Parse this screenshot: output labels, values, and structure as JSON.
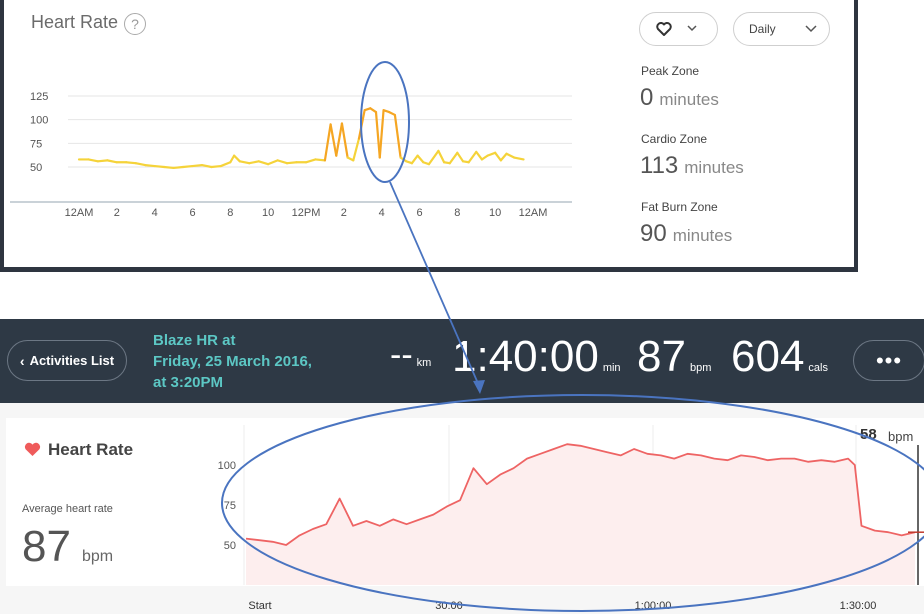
{
  "daily_card": {
    "title": "Heart Rate",
    "help": "?",
    "heart_dropdown": {
      "icon": "heart-outline-icon",
      "caret": "chevron-down-icon"
    },
    "range_dropdown": {
      "label": "Daily",
      "caret": "chevron-down-icon"
    },
    "zones": [
      {
        "label": "Peak Zone",
        "value": "0",
        "unit": "minutes"
      },
      {
        "label": "Cardio Zone",
        "value": "113",
        "unit": "minutes"
      },
      {
        "label": "Fat Burn Zone",
        "value": "90",
        "unit": "minutes"
      }
    ]
  },
  "activity_header": {
    "back_label": "Activities List",
    "title_lines": [
      "Blaze HR at",
      "Friday, 25 March 2016,",
      "at 3:20PM"
    ],
    "stats": [
      {
        "value": "--",
        "unit": "km"
      },
      {
        "value": "1:40:00",
        "unit": "min"
      },
      {
        "value": "87",
        "unit": "bpm"
      },
      {
        "value": "604",
        "unit": "cals"
      }
    ],
    "more_label": "•••"
  },
  "activity_card": {
    "title": "Heart Rate",
    "avg_label": "Average heart rate",
    "avg_value": "87",
    "avg_unit": "bpm",
    "current_value": "58",
    "current_unit": "bpm"
  },
  "colors": {
    "daily_line_low": "#f5d33a",
    "daily_line_high": "#f5a623",
    "activity_line": "#ee6464",
    "activity_fill": "#fdeeee",
    "annotation": "#4a74c0",
    "header_bg": "#2e3945",
    "title_teal": "#5cc7c4"
  },
  "chart_data": [
    {
      "type": "line",
      "ylabel": "",
      "xlabel": "",
      "yticks": [
        125,
        100,
        75,
        50
      ],
      "ylim": [
        37,
        130
      ],
      "xticks": [
        "12AM",
        "2",
        "4",
        "6",
        "8",
        "10",
        "12PM",
        "2",
        "4",
        "6",
        "8",
        "10",
        "12AM"
      ],
      "x_hours": [
        0,
        0.5,
        1,
        1.5,
        2,
        2.5,
        3,
        3.5,
        4,
        4.5,
        5,
        5.5,
        6,
        6.5,
        7,
        7.5,
        8,
        8.2,
        8.5,
        9,
        9.5,
        10,
        10.5,
        11,
        11.5,
        12,
        12.5,
        13,
        13.3,
        13.6,
        13.9,
        14.2,
        14.5,
        14.8,
        15.1,
        15.4,
        15.7,
        15.9,
        16.1,
        16.4,
        16.7,
        17,
        17.3,
        17.6,
        17.9,
        18.2,
        18.5,
        19,
        19.3,
        19.6,
        20,
        20.3,
        20.6,
        21,
        21.3,
        21.6,
        22,
        22.3,
        22.6,
        23,
        23.5
      ],
      "values": [
        58,
        58,
        56,
        57,
        55,
        55,
        54,
        52,
        51,
        50,
        49,
        50,
        51,
        52,
        50,
        51,
        55,
        62,
        56,
        54,
        56,
        53,
        57,
        54,
        55,
        55,
        58,
        57,
        95,
        62,
        96,
        60,
        57,
        80,
        110,
        112,
        108,
        60,
        110,
        108,
        105,
        60,
        56,
        54,
        62,
        55,
        53,
        67,
        55,
        54,
        65,
        56,
        55,
        66,
        58,
        62,
        65,
        57,
        64,
        60,
        58
      ]
    },
    {
      "type": "area",
      "xticks": [
        "Start",
        "30:00",
        "1:00:00",
        "1:30:00"
      ],
      "yticks": [
        100,
        75,
        50
      ],
      "ylim": [
        28,
        125
      ],
      "x_minutes": [
        0,
        2,
        4,
        6,
        8,
        10,
        12,
        14,
        16,
        18,
        20,
        22,
        24,
        26,
        28,
        30,
        32,
        34,
        36,
        38,
        40,
        42,
        44,
        46,
        48,
        50,
        52,
        54,
        56,
        58,
        60,
        62,
        64,
        66,
        68,
        70,
        72,
        74,
        76,
        78,
        80,
        82,
        84,
        86,
        88,
        90,
        91,
        92,
        94,
        96,
        98,
        100
      ],
      "values": [
        54,
        53,
        52,
        50,
        56,
        60,
        63,
        79,
        62,
        65,
        62,
        66,
        63,
        66,
        69,
        74,
        78,
        98,
        88,
        94,
        98,
        104,
        107,
        110,
        113,
        112,
        110,
        108,
        106,
        110,
        107,
        106,
        104,
        107,
        106,
        104,
        103,
        106,
        105,
        103,
        104,
        104,
        102,
        103,
        102,
        104,
        100,
        62,
        59,
        58,
        56,
        58
      ]
    }
  ]
}
